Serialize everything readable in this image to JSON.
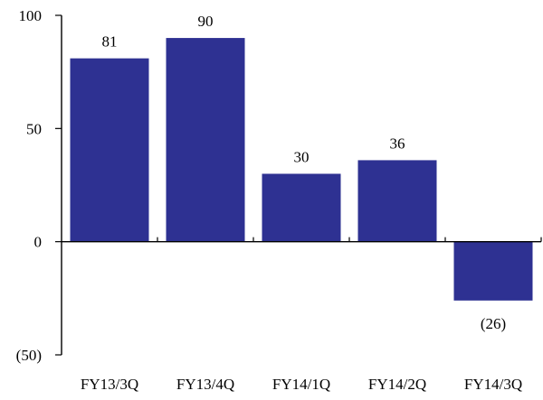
{
  "chart_data": {
    "type": "bar",
    "title": "",
    "xlabel": "",
    "ylabel": "",
    "categories": [
      "FY13/3Q",
      "FY13/4Q",
      "FY14/1Q",
      "FY14/2Q",
      "FY14/3Q"
    ],
    "values": [
      81,
      90,
      30,
      36,
      -26
    ],
    "data_labels": [
      "81",
      "90",
      "30",
      "36",
      "(26)"
    ],
    "ylim": [
      -50,
      100
    ],
    "yticks": [
      100,
      50,
      0,
      -50
    ],
    "ytick_labels": [
      "100",
      "50",
      "0",
      "(50)"
    ],
    "bar_color": "#2E3192",
    "grid": false,
    "legend": "none"
  }
}
